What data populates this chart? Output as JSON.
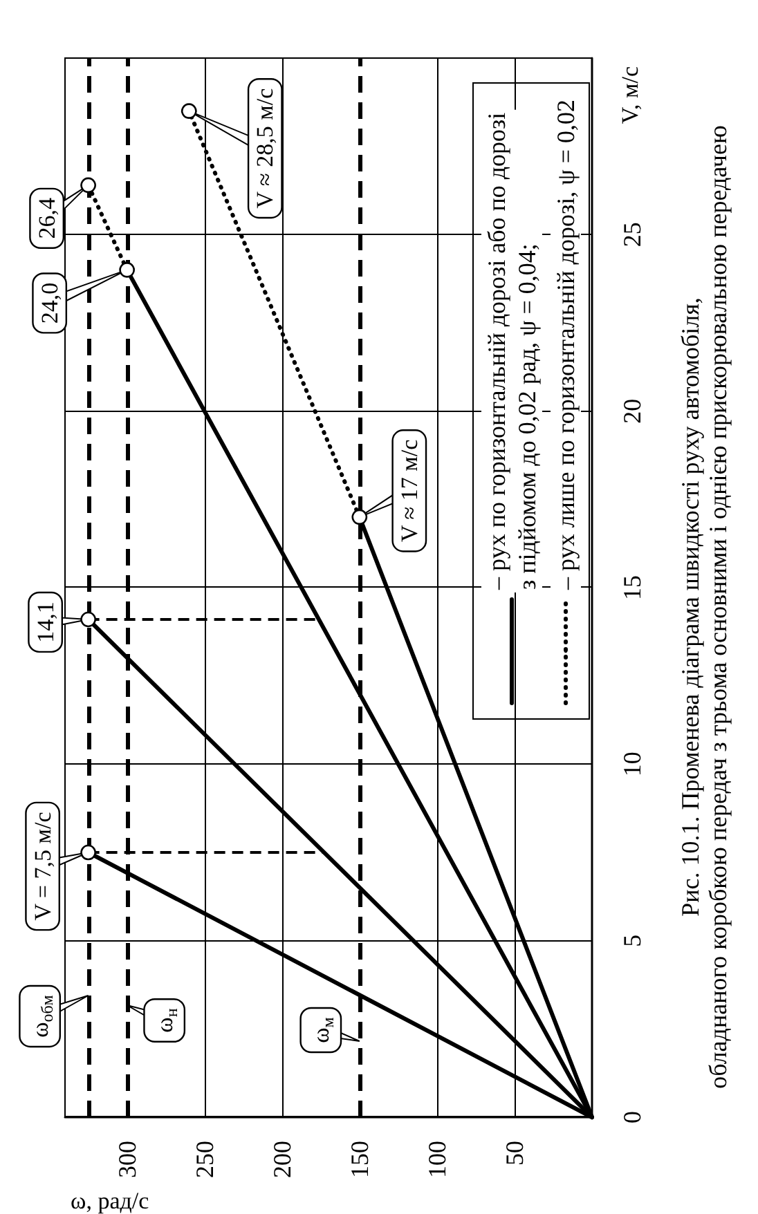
{
  "chart_data": {
    "type": "line",
    "title": "Рис. 10.1. Променева діаграма швидкості руху автомобіля,\nобладнаного коробкою передач з трьома основними і однією прискорювальною передачею",
    "xlabel": "ω, рад/с",
    "ylabel": "V, м/с",
    "series": [
      {
        "name": "– рух по горизонтальній дорозі або по дорозі\nз підйомом до 0,02 рад, ψ = 0,04;",
        "color": "#000000",
        "line_style": "solid",
        "x": [
          0,
          325
        ],
        "values": [
          0,
          7.5
        ]
      },
      {
        "color": "#000000",
        "line_style": "solid",
        "x": [
          0,
          325
        ],
        "values": [
          0,
          14.1
        ]
      },
      {
        "color": "#000000",
        "line_style": "solid",
        "x": [
          0,
          300
        ],
        "values": [
          0,
          24.0
        ]
      },
      {
        "color": "#000000",
        "line_style": "solid",
        "x": [
          0,
          150
        ],
        "values": [
          0,
          17
        ]
      },
      {
        "name": "– рух лише по горизонтальній дорозі, ψ = 0,02",
        "color": "#000000",
        "line_style": "dotted",
        "x": [
          300,
          325
        ],
        "values": [
          24.0,
          26.4
        ]
      },
      {
        "color": "#000000",
        "line_style": "dotted",
        "x": [
          150,
          260
        ],
        "values": [
          17,
          28.5
        ]
      },
      {
        "color": "#000000",
        "line_style": "dashed",
        "x": [
          325,
          173
        ],
        "values": [
          7.5,
          7.5
        ]
      },
      {
        "color": "#000000",
        "line_style": "dashed",
        "x": [
          325,
          176
        ],
        "values": [
          14.1,
          14.1
        ]
      }
    ],
    "xlim": [
      340,
      0
    ],
    "xticks": [
      300,
      250,
      200,
      150,
      100,
      50
    ],
    "ylim": [
      0,
      30
    ],
    "yticks": [
      0,
      5,
      10,
      15,
      20,
      25
    ],
    "grid": true,
    "legend": "top right",
    "ref_lines": [
      {
        "axis": "x",
        "value": 325,
        "label": "ω$_{обм}$",
        "line_style": "dashed"
      },
      {
        "axis": "x",
        "value": 300,
        "label": "ω$_{н}$",
        "line_style": "dashed"
      },
      {
        "axis": "x",
        "value": 150,
        "label": "ω$_{м}$",
        "line_style": "dashed"
      }
    ],
    "annotations": [
      {
        "text": "V = 7,5 м/с",
        "x": 325,
        "y": 7.5
      },
      {
        "text": "14,1",
        "x": 325,
        "y": 14.1
      },
      {
        "text": "24,0",
        "x": 300,
        "y": 24.0
      },
      {
        "text": "26,4",
        "x": 325,
        "y": 26.4
      },
      {
        "text": "V ≈ 17 м/с",
        "x": 150,
        "y": 17
      },
      {
        "text": "V ≈ 28,5 м/с",
        "x": 260,
        "y": 28.5
      }
    ]
  }
}
